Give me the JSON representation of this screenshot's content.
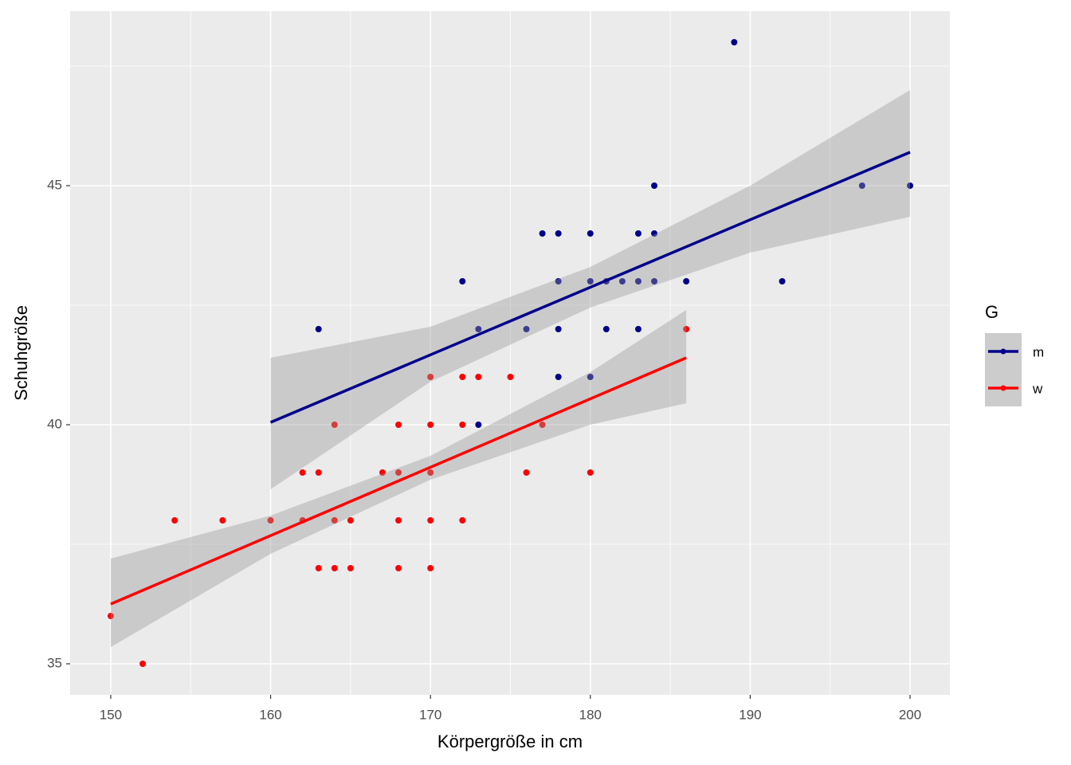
{
  "chart_data": {
    "type": "scatter",
    "x_label": "Körpergröße in cm",
    "y_label": "Schuhgröße",
    "legend_title": "G",
    "xlim": [
      147.46,
      202.49
    ],
    "ylim": [
      34.35,
      48.65
    ],
    "xticks": [
      150,
      160,
      170,
      180,
      190,
      200
    ],
    "yticks": [
      35,
      40,
      45
    ],
    "minor_xticks": [
      155,
      165,
      175,
      185,
      195
    ],
    "minor_yticks": [
      37.5,
      42.5,
      47.5
    ],
    "grid": true,
    "legend": "right",
    "series": [
      {
        "name": "m",
        "color": "#00008b",
        "x": [
          163,
          172,
          173,
          173,
          176,
          177,
          178,
          178,
          178,
          178,
          180,
          180,
          180,
          181,
          181,
          182,
          183,
          183,
          183,
          184,
          184,
          184,
          186,
          189,
          192,
          197,
          200
        ],
        "y": [
          42,
          43,
          42,
          40,
          42,
          44,
          44,
          43,
          42,
          41,
          44,
          43,
          41,
          43,
          42,
          43,
          44,
          43,
          42,
          45,
          44,
          43,
          43,
          48,
          43,
          45,
          45
        ],
        "fit_x": [
          160,
          200
        ],
        "fit_y": [
          40.05,
          45.7
        ],
        "band_x": [
          160,
          170,
          180,
          190,
          200
        ],
        "band_lower": [
          38.65,
          40.9,
          42.45,
          43.6,
          44.35
        ],
        "band_upper": [
          41.4,
          42.05,
          43.3,
          45.0,
          47.0
        ]
      },
      {
        "name": "w",
        "color": "#ff0000",
        "x": [
          150,
          152,
          154,
          157,
          160,
          162,
          162,
          163,
          163,
          164,
          164,
          164,
          165,
          165,
          167,
          168,
          168,
          168,
          168,
          170,
          170,
          170,
          170,
          170,
          172,
          172,
          172,
          173,
          175,
          176,
          177,
          180,
          186
        ],
        "y": [
          36,
          35,
          38,
          38,
          38,
          39,
          38,
          39,
          37,
          40,
          38,
          37,
          38,
          37,
          39,
          40,
          39,
          38,
          37,
          41,
          40,
          39,
          38,
          37,
          41,
          40,
          38,
          41,
          41,
          39,
          40,
          39,
          42
        ],
        "fit_x": [
          150,
          186
        ],
        "fit_y": [
          36.25,
          41.4
        ],
        "band_x": [
          150,
          160,
          170,
          180,
          186
        ],
        "band_lower": [
          35.35,
          37.3,
          38.85,
          40.0,
          40.45
        ],
        "band_upper": [
          37.2,
          38.1,
          39.35,
          41.1,
          42.4
        ]
      }
    ]
  }
}
